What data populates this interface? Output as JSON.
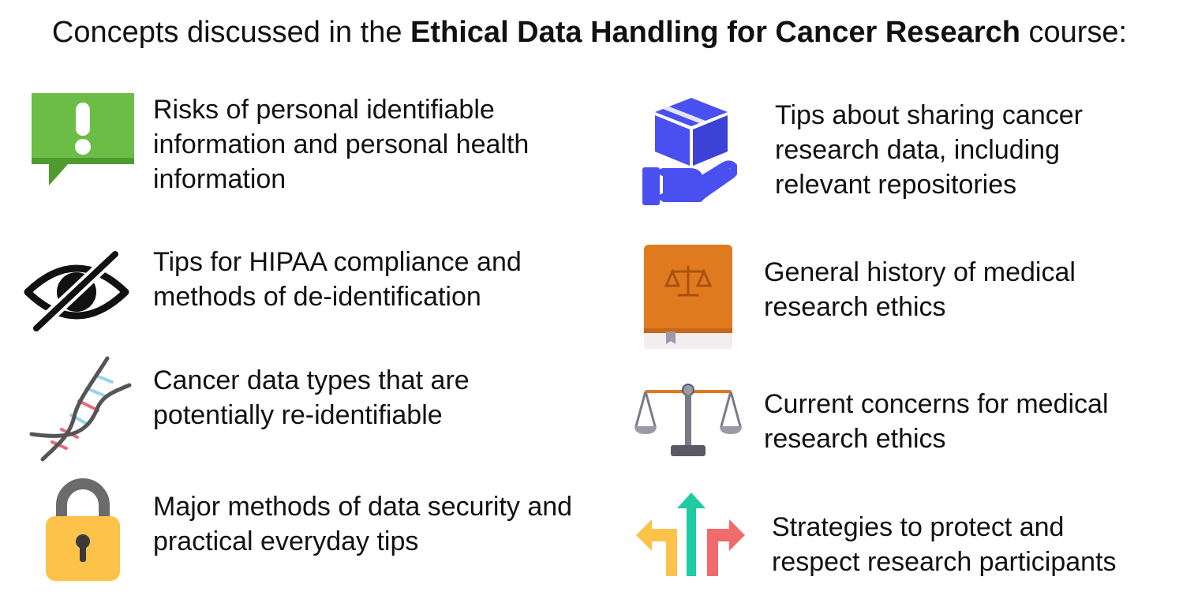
{
  "header": {
    "prefix": "Concepts discussed in the ",
    "course": "Ethical Data Handling for Cancer Research",
    "suffix": " course:"
  },
  "left": [
    {
      "icon": "alert-speech-bubble-icon",
      "lines": [
        "Risks of personal identifiable",
        "information and personal health",
        "information"
      ]
    },
    {
      "icon": "eye-slash-icon",
      "lines": [
        "Tips for HIPAA compliance and",
        "methods of de-identification"
      ]
    },
    {
      "icon": "dna-helix-icon",
      "lines": [
        "Cancer data types that are",
        "potentially re-identifiable"
      ]
    },
    {
      "icon": "padlock-icon",
      "lines": [
        "Major methods of data security and",
        "practical everyday tips"
      ]
    }
  ],
  "right": [
    {
      "icon": "hand-holding-box-icon",
      "lines": [
        "Tips about sharing cancer",
        "research data, including",
        "relevant repositories"
      ]
    },
    {
      "icon": "law-book-icon",
      "lines": [
        "General history of medical",
        "research ethics"
      ]
    },
    {
      "icon": "balance-scale-icon",
      "lines": [
        "Current concerns for medical",
        "research ethics"
      ]
    },
    {
      "icon": "diverging-arrows-icon",
      "lines": [
        "Strategies to protect and",
        "respect research participants"
      ]
    }
  ],
  "colors": {
    "alert_green": "#6cbd45",
    "box_blue": "#4a4ff0",
    "book_orange": "#e07a1f",
    "lock_yellow": "#fdc24a",
    "arrow_teal": "#1fcca2",
    "arrow_red": "#f06c6c"
  }
}
